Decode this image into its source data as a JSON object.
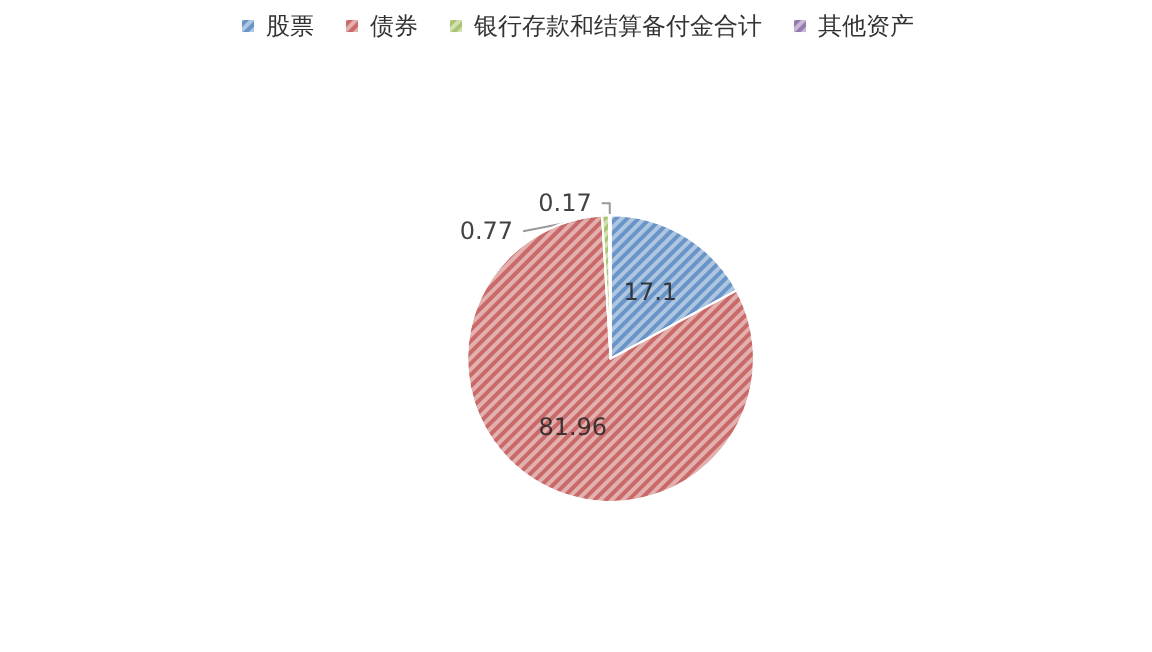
{
  "chart_data": {
    "type": "pie",
    "categories": [
      "股票",
      "债券",
      "银行存款和结算备付金合计",
      "其他资产"
    ],
    "values": [
      17.1,
      81.96,
      0.77,
      0.17
    ],
    "colors": [
      "#4f81bd",
      "#c0504d",
      "#9bbb59",
      "#8064a2"
    ],
    "data_labels": true,
    "legend": "top"
  }
}
